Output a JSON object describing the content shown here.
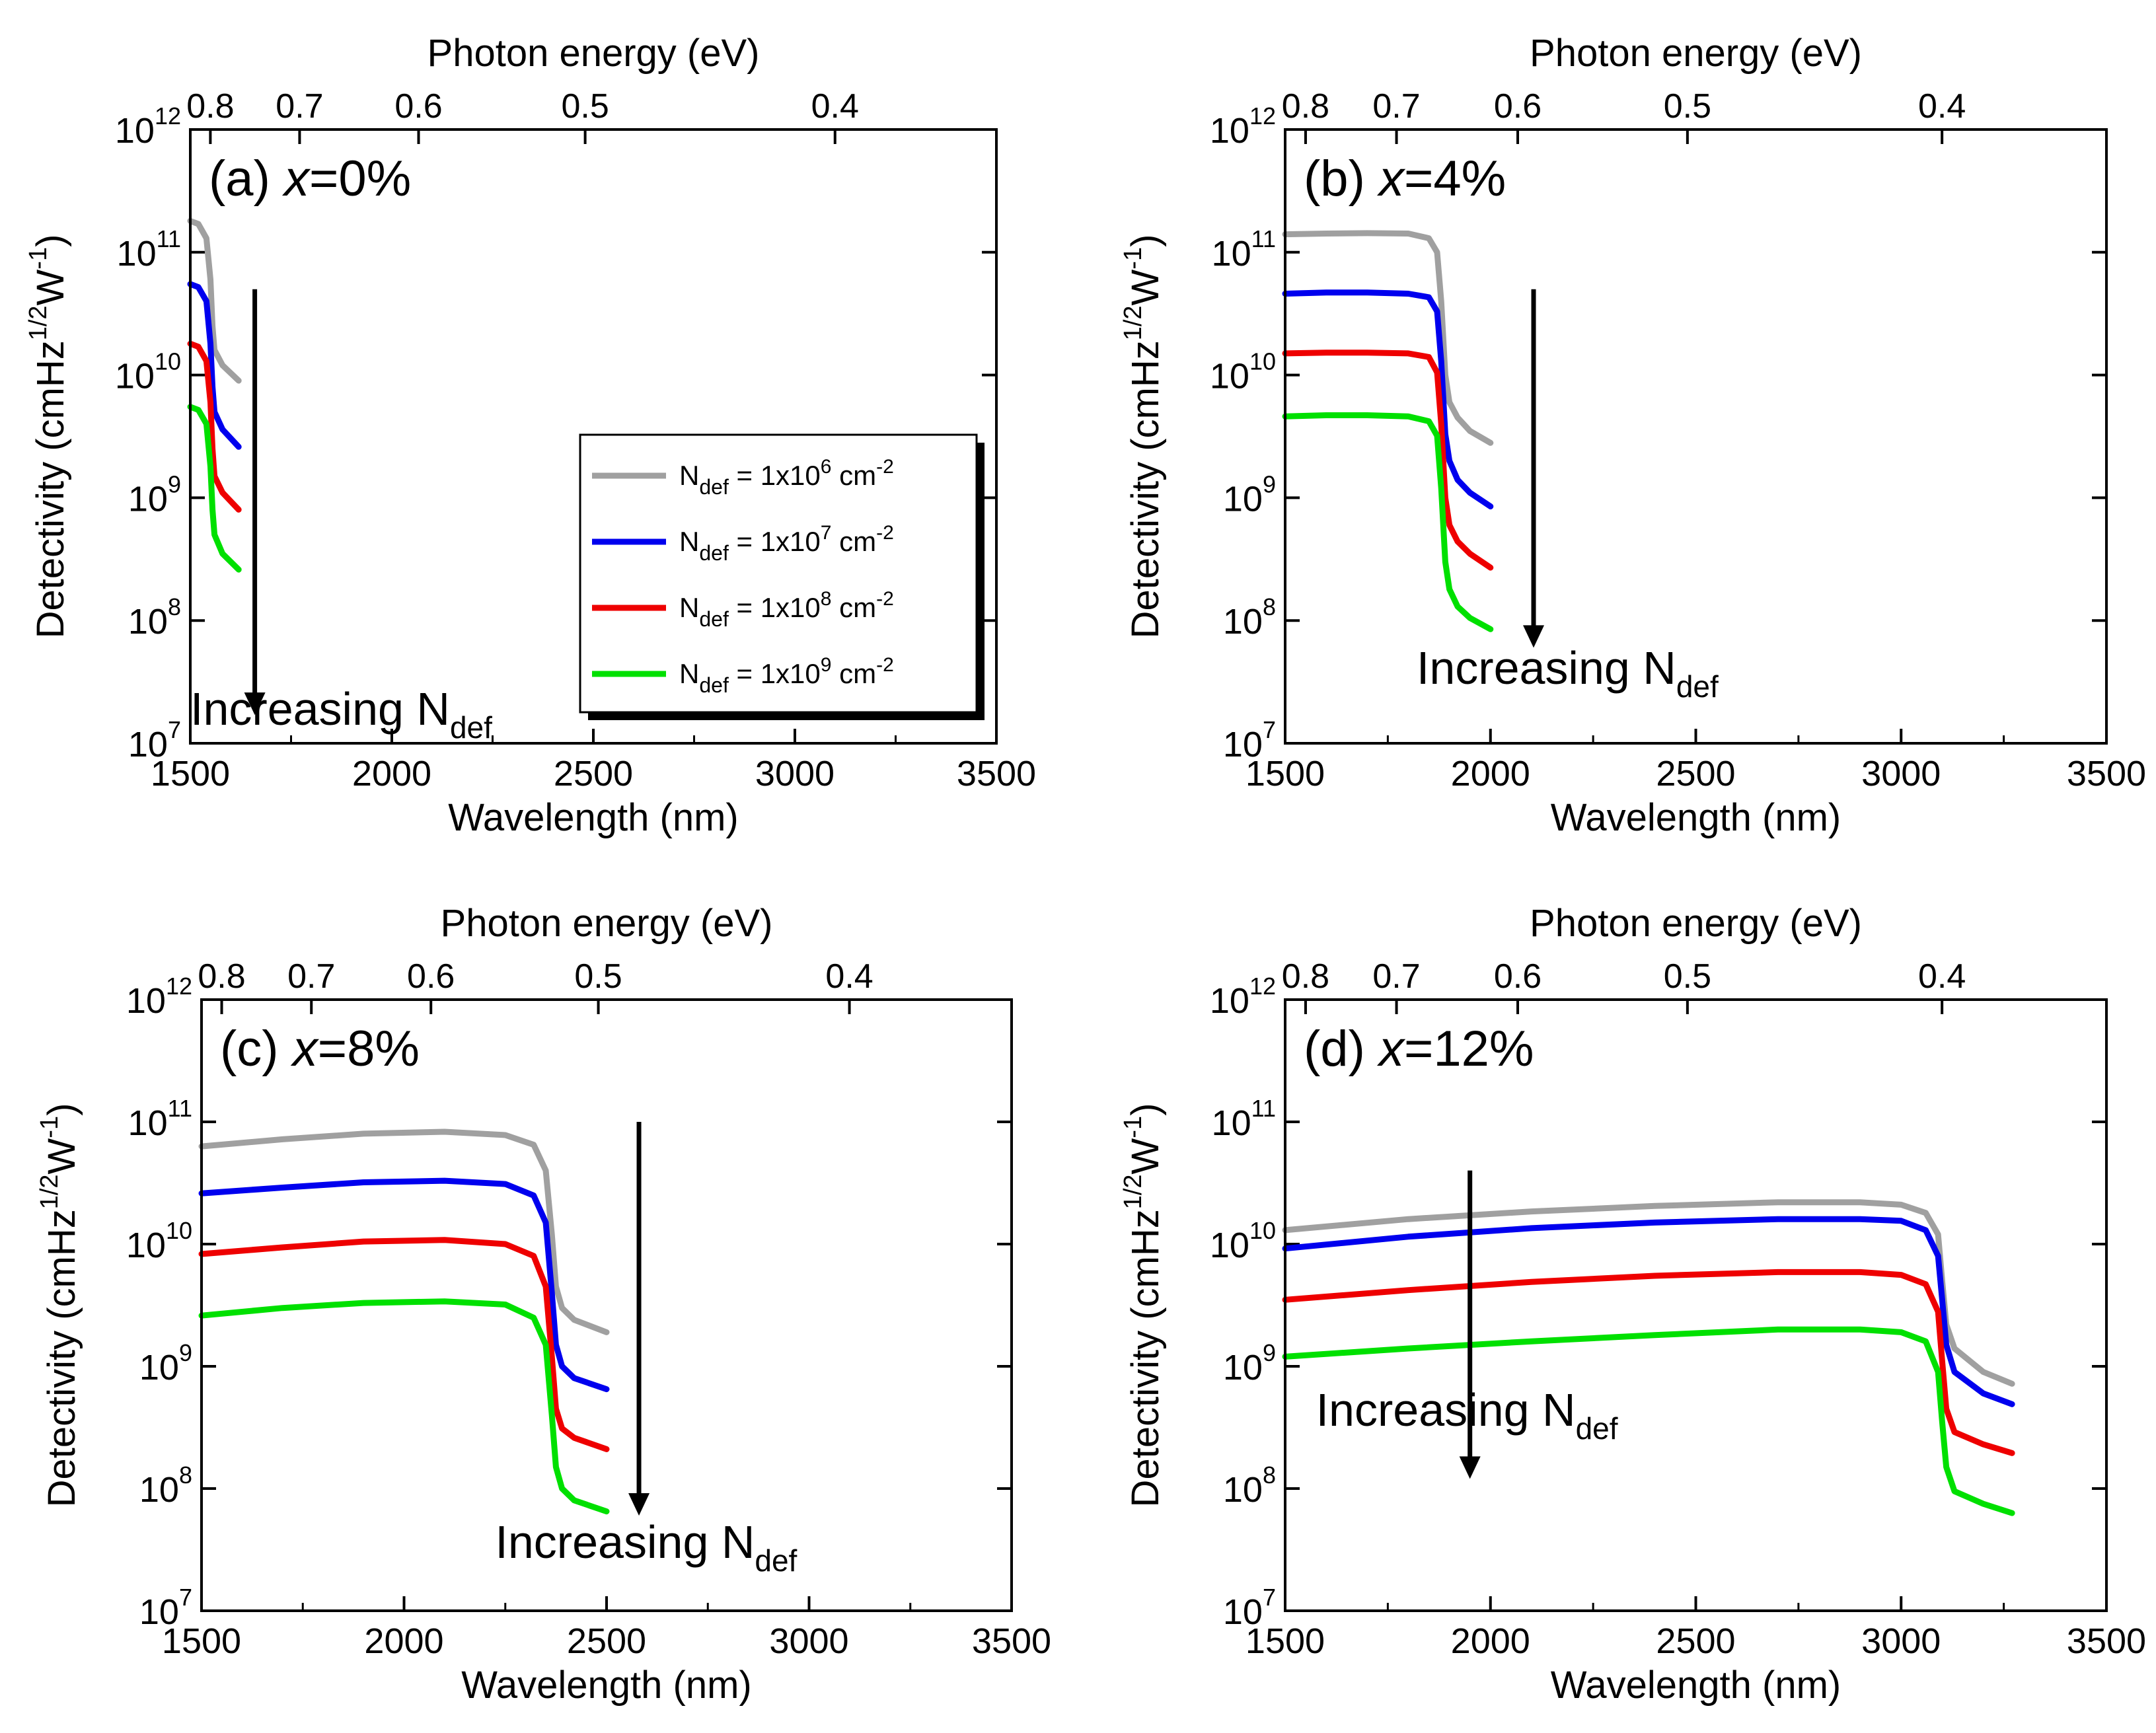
{
  "colors": {
    "gray": "#a0a0a0",
    "blue": "#0000ee",
    "red": "#ee0000",
    "green": "#00e000"
  },
  "chart_data": [
    {
      "type": "line",
      "panel": "(a)",
      "variable": "x",
      "value_text": "=0%",
      "xlabel": "Wavelength (nm)",
      "ylabel": "Detectivity (cmHz",
      "ylabel_sup1": "1/2",
      "ylabel_mid": "W",
      "ylabel_sup2": "-1",
      "ylabel_end": ")",
      "top_axis_label": "Photon energy (eV)",
      "xlim": [
        1500,
        3500
      ],
      "ylim": [
        10000000.0,
        1000000000000.0
      ],
      "yscale": "log",
      "xticks": [
        1500,
        2000,
        2500,
        3000,
        3500
      ],
      "yticks": [
        7,
        8,
        9,
        10,
        11,
        12
      ],
      "top_ticks": [
        0.8,
        0.7,
        0.6,
        0.5,
        0.4
      ],
      "annotation": "Increasing N",
      "annotation_sub": "def",
      "arrow": {
        "x": 1660,
        "y_start": 50000000000.0,
        "y_end": 17000000.0
      },
      "series": [
        {
          "color": "gray",
          "x": [
            1500,
            1520,
            1540,
            1550,
            1555,
            1560,
            1580,
            1620
          ],
          "y": [
            180000000000.0,
            170000000000.0,
            130000000000.0,
            60000000000.0,
            25000000000.0,
            16000000000.0,
            12000000000.0,
            9000000000.0
          ]
        },
        {
          "color": "blue",
          "x": [
            1500,
            1520,
            1540,
            1550,
            1555,
            1560,
            1580,
            1620
          ],
          "y": [
            55000000000.0,
            52000000000.0,
            40000000000.0,
            18000000000.0,
            8000000000.0,
            5000000000.0,
            3600000000.0,
            2600000000.0
          ]
        },
        {
          "color": "red",
          "x": [
            1500,
            1520,
            1540,
            1550,
            1555,
            1560,
            1580,
            1620
          ],
          "y": [
            18000000000.0,
            17000000000.0,
            13000000000.0,
            6000000000.0,
            2500000000.0,
            1500000000.0,
            1100000000.0,
            800000000.0
          ]
        },
        {
          "color": "green",
          "x": [
            1500,
            1520,
            1540,
            1550,
            1555,
            1560,
            1580,
            1620
          ],
          "y": [
            5500000000.0,
            5200000000.0,
            4000000000.0,
            1800000000.0,
            800000000.0,
            500000000.0,
            350000000.0,
            260000000.0
          ]
        }
      ],
      "legend": {
        "position": "center-right",
        "entries": [
          {
            "color": "gray",
            "prefix": "N",
            "sub": "def",
            "mid": " = 1x10",
            "exp": "6",
            "unit": " cm",
            "unit_exp": "-2"
          },
          {
            "color": "blue",
            "prefix": "N",
            "sub": "def",
            "mid": " = 1x10",
            "exp": "7",
            "unit": " cm",
            "unit_exp": "-2"
          },
          {
            "color": "red",
            "prefix": "N",
            "sub": "def",
            "mid": " = 1x10",
            "exp": "8",
            "unit": " cm",
            "unit_exp": "-2"
          },
          {
            "color": "green",
            "prefix": "N",
            "sub": "def",
            "mid": " = 1x10",
            "exp": "9",
            "unit": " cm",
            "unit_exp": "-2"
          }
        ]
      }
    },
    {
      "type": "line",
      "panel": "(b)",
      "variable": "x",
      "value_text": "=4%",
      "xlabel": "Wavelength (nm)",
      "ylabel": "Detectivity (cmHz",
      "ylabel_sup1": "1/2",
      "ylabel_mid": "W",
      "ylabel_sup2": "-1",
      "ylabel_end": ")",
      "top_axis_label": "Photon energy (eV)",
      "xlim": [
        1500,
        3500
      ],
      "ylim": [
        10000000.0,
        1000000000000.0
      ],
      "yscale": "log",
      "xticks": [
        1500,
        2000,
        2500,
        3000,
        3500
      ],
      "yticks": [
        7,
        8,
        9,
        10,
        11,
        12
      ],
      "top_ticks": [
        0.8,
        0.7,
        0.6,
        0.5,
        0.4
      ],
      "annotation": "Increasing N",
      "annotation_sub": "def",
      "arrow": {
        "x": 2105,
        "y_start": 50000000000.0,
        "y_end": 60000000.0
      },
      "series": [
        {
          "color": "gray",
          "x": [
            1500,
            1600,
            1700,
            1800,
            1850,
            1870,
            1880,
            1890,
            1900,
            1920,
            1950,
            2000
          ],
          "y": [
            140000000000.0,
            142000000000.0,
            143000000000.0,
            142000000000.0,
            130000000000.0,
            100000000000.0,
            40000000000.0,
            10000000000.0,
            6000000000.0,
            4500000000.0,
            3500000000.0,
            2800000000.0
          ]
        },
        {
          "color": "blue",
          "x": [
            1500,
            1600,
            1700,
            1800,
            1850,
            1870,
            1880,
            1890,
            1900,
            1920,
            1950,
            2000
          ],
          "y": [
            46000000000.0,
            47000000000.0,
            47000000000.0,
            46000000000.0,
            43000000000.0,
            33000000000.0,
            13000000000.0,
            3300000000.0,
            2000000000.0,
            1400000000.0,
            1100000000.0,
            850000000.0
          ]
        },
        {
          "color": "red",
          "x": [
            1500,
            1600,
            1700,
            1800,
            1850,
            1870,
            1880,
            1890,
            1900,
            1920,
            1950,
            2000
          ],
          "y": [
            15000000000.0,
            15200000000.0,
            15200000000.0,
            15000000000.0,
            14000000000.0,
            10500000000.0,
            4000000000.0,
            1000000000.0,
            600000000.0,
            440000000.0,
            350000000.0,
            270000000.0
          ]
        },
        {
          "color": "green",
          "x": [
            1500,
            1600,
            1700,
            1800,
            1850,
            1870,
            1880,
            1890,
            1900,
            1920,
            1950,
            2000
          ],
          "y": [
            4600000000.0,
            4700000000.0,
            4700000000.0,
            4600000000.0,
            4200000000.0,
            3200000000.0,
            1200000000.0,
            300000000.0,
            180000000.0,
            130000000.0,
            105000000.0,
            85000000.0
          ]
        }
      ]
    },
    {
      "type": "line",
      "panel": "(c)",
      "variable": "x",
      "value_text": "=8%",
      "xlabel": "Wavelength (nm)",
      "ylabel": "Detectivity (cmHz",
      "ylabel_sup1": "1/2",
      "ylabel_mid": "W",
      "ylabel_sup2": "-1",
      "ylabel_end": ")",
      "top_axis_label": "Photon energy (eV)",
      "xlim": [
        1500,
        3500
      ],
      "ylim": [
        10000000.0,
        1000000000000.0
      ],
      "yscale": "log",
      "xticks": [
        1500,
        2000,
        2500,
        3000,
        3500
      ],
      "yticks": [
        7,
        8,
        9,
        10,
        11,
        12
      ],
      "top_ticks": [
        0.8,
        0.7,
        0.6,
        0.5,
        0.4
      ],
      "annotation": "Increasing N",
      "annotation_sub": "def",
      "arrow": {
        "x": 2580,
        "y_start": 100000000000.0,
        "y_end": 60000000.0
      },
      "series": [
        {
          "color": "gray",
          "x": [
            1500,
            1700,
            1900,
            2100,
            2250,
            2320,
            2350,
            2365,
            2375,
            2390,
            2420,
            2500
          ],
          "y": [
            63000000000.0,
            72000000000.0,
            80000000000.0,
            83000000000.0,
            78000000000.0,
            65000000000.0,
            40000000000.0,
            12000000000.0,
            4500000000.0,
            3000000000.0,
            2400000000.0,
            1900000000.0
          ]
        },
        {
          "color": "blue",
          "x": [
            1500,
            1700,
            1900,
            2100,
            2250,
            2320,
            2350,
            2365,
            2375,
            2390,
            2420,
            2500
          ],
          "y": [
            26000000000.0,
            29000000000.0,
            32000000000.0,
            33000000000.0,
            31000000000.0,
            25000000000.0,
            15000000000.0,
            4000000000.0,
            1500000000.0,
            1000000000.0,
            800000000.0,
            650000000.0
          ]
        },
        {
          "color": "red",
          "x": [
            1500,
            1700,
            1900,
            2100,
            2250,
            2320,
            2350,
            2365,
            2375,
            2390,
            2420,
            2500
          ],
          "y": [
            8300000000.0,
            9400000000.0,
            10500000000.0,
            10800000000.0,
            10000000000.0,
            8000000000.0,
            4500000000.0,
            1200000000.0,
            450000000.0,
            310000000.0,
            260000000.0,
            210000000.0
          ]
        },
        {
          "color": "green",
          "x": [
            1500,
            1700,
            1900,
            2100,
            2250,
            2320,
            2350,
            2365,
            2375,
            2390,
            2420,
            2500
          ],
          "y": [
            2600000000.0,
            3000000000.0,
            3300000000.0,
            3400000000.0,
            3200000000.0,
            2500000000.0,
            1500000000.0,
            400000000.0,
            150000000.0,
            100000000.0,
            80000000.0,
            65000000.0
          ]
        }
      ]
    },
    {
      "type": "line",
      "panel": "(d)",
      "variable": "x",
      "value_text": "=12%",
      "xlabel": "Wavelength (nm)",
      "ylabel": "Detectivity (cmHz",
      "ylabel_sup1": "1/2",
      "ylabel_mid": "W",
      "ylabel_sup2": "-1",
      "ylabel_end": ")",
      "top_axis_label": "Photon energy (eV)",
      "xlim": [
        1500,
        3500
      ],
      "ylim": [
        10000000.0,
        1000000000000.0
      ],
      "yscale": "log",
      "xticks": [
        1500,
        2000,
        2500,
        3000,
        3500
      ],
      "yticks": [
        7,
        8,
        9,
        10,
        11,
        12
      ],
      "top_ticks": [
        0.8,
        0.7,
        0.6,
        0.5,
        0.4
      ],
      "annotation": "Increasing N",
      "annotation_sub": "def",
      "arrow": {
        "x": 1950,
        "y_start": 40000000000.0,
        "y_end": 120000000.0
      },
      "series": [
        {
          "color": "gray",
          "x": [
            1500,
            1800,
            2100,
            2400,
            2700,
            2900,
            3000,
            3060,
            3090,
            3100,
            3110,
            3130,
            3200,
            3270
          ],
          "y": [
            13000000000.0,
            16000000000.0,
            18500000000.0,
            20500000000.0,
            22000000000.0,
            22000000000.0,
            21000000000.0,
            18000000000.0,
            12000000000.0,
            5000000000.0,
            2200000000.0,
            1400000000.0,
            900000000.0,
            720000000.0
          ]
        },
        {
          "color": "blue",
          "x": [
            1500,
            1800,
            2100,
            2400,
            2700,
            2900,
            3000,
            3060,
            3090,
            3100,
            3110,
            3130,
            3200,
            3270
          ],
          "y": [
            9200000000.0,
            11500000000.0,
            13500000000.0,
            15000000000.0,
            16000000000.0,
            16000000000.0,
            15500000000.0,
            13000000000.0,
            8000000000.0,
            3500000000.0,
            1500000000.0,
            900000000.0,
            600000000.0,
            490000000.0
          ]
        },
        {
          "color": "red",
          "x": [
            1500,
            1800,
            2100,
            2400,
            2700,
            2900,
            3000,
            3060,
            3090,
            3100,
            3110,
            3130,
            3200,
            3270
          ],
          "y": [
            3500000000.0,
            4200000000.0,
            4900000000.0,
            5500000000.0,
            5900000000.0,
            5900000000.0,
            5600000000.0,
            4700000000.0,
            2800000000.0,
            1100000000.0,
            450000000.0,
            290000000.0,
            230000000.0,
            195000000.0
          ]
        },
        {
          "color": "green",
          "x": [
            1500,
            1800,
            2100,
            2400,
            2700,
            2900,
            3000,
            3060,
            3090,
            3100,
            3110,
            3130,
            3200,
            3270
          ],
          "y": [
            1200000000.0,
            1400000000.0,
            1600000000.0,
            1800000000.0,
            2000000000.0,
            2000000000.0,
            1900000000.0,
            1600000000.0,
            900000000.0,
            350000000.0,
            150000000.0,
            95000000.0,
            75000000.0,
            63000000.0
          ]
        }
      ]
    }
  ]
}
